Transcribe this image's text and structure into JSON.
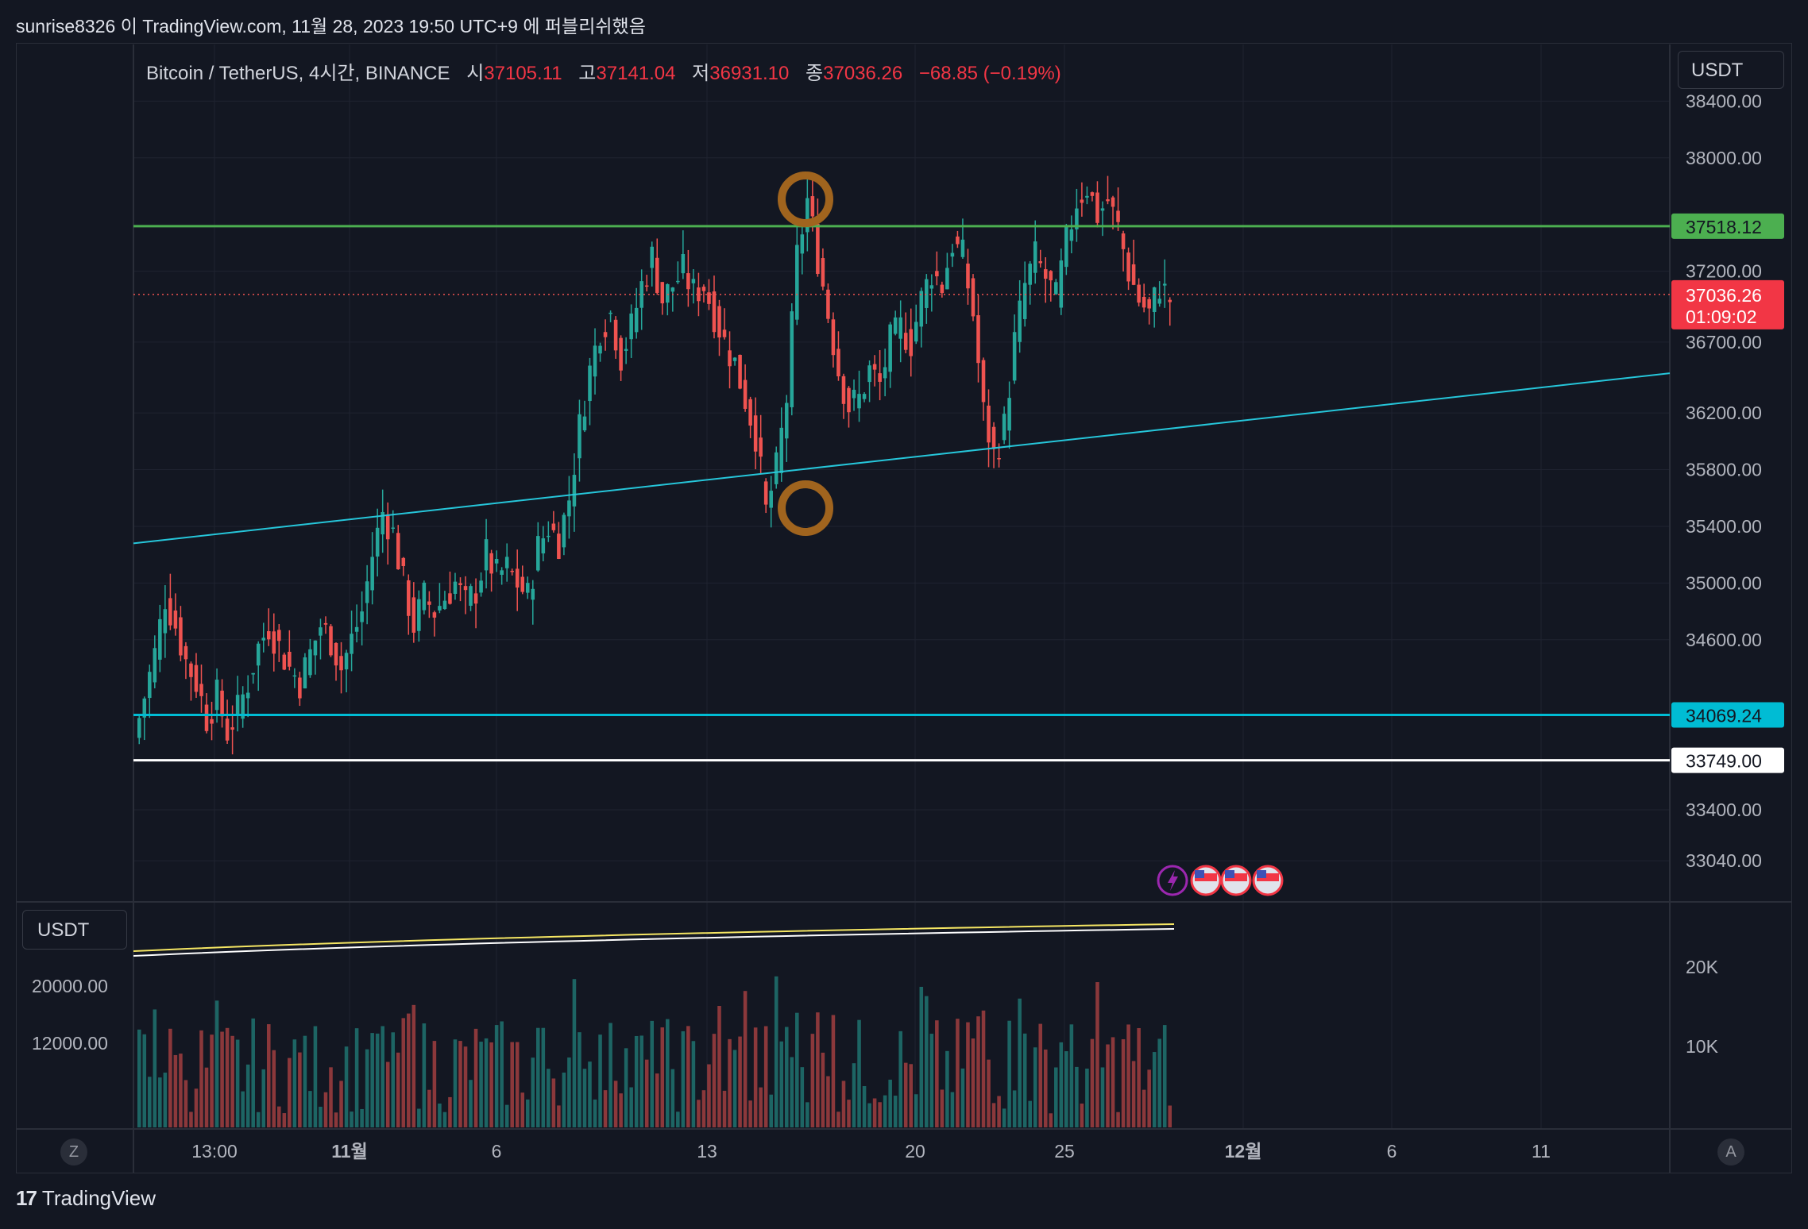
{
  "header": {
    "text": "sunrise8326 이 TradingView.com, 11월 28, 2023 19:50 UTC+9 에 퍼블리쉬했음"
  },
  "legend": {
    "symbol": "Bitcoin / TetherUS, 4시간, BINANCE",
    "o_label": "시",
    "o": "37105.11",
    "h_label": "고",
    "h": "37141.04",
    "l_label": "저",
    "l": "36931.10",
    "c_label": "종",
    "c": "37036.26",
    "change": "−68.85 (−0.19%)"
  },
  "currency_button": "USDT",
  "volume_currency_button": "USDT",
  "footer": {
    "brand": "TradingView",
    "logo": "17"
  },
  "corners": {
    "left": "Z",
    "right": "A"
  },
  "colors": {
    "up": "#26a69a",
    "down": "#ef5350",
    "bg": "#131722",
    "grid": "#1f2330",
    "green_line": "#4caf50",
    "cyan_line": "#00bcd4",
    "white_line": "#ffffff",
    "trend": "#26c6da",
    "circle": "#a0641e"
  },
  "chart_data": {
    "type": "candlestick",
    "y_ticks": [
      "38400.00",
      "38000.00",
      "37200.00",
      "36700.00",
      "36200.00",
      "35800.00",
      "35400.00",
      "35000.00",
      "34600.00",
      "33400.00",
      "33040.00"
    ],
    "x_ticks": [
      "13:00",
      "11월",
      "6",
      "13",
      "20",
      "25",
      "12월",
      "6",
      "11"
    ],
    "horizontal_lines": [
      {
        "price": 37518.12,
        "label": "37518.12",
        "color": "#4caf50"
      },
      {
        "price": 34069.24,
        "label": "34069.24",
        "color": "#00bcd4"
      },
      {
        "price": 33749.0,
        "label": "33749.00",
        "color": "#ffffff"
      }
    ],
    "last_price": {
      "price": 37036.26,
      "label": "37036.26",
      "countdown": "01:09:02"
    },
    "trendline": {
      "from": [
        "2023-10-29",
        35280
      ],
      "to": [
        "2023-12-13",
        36480
      ]
    },
    "volume_axis_left": [
      "20000.00",
      "12000.00"
    ],
    "volume_axis_right": [
      "20K",
      "10K"
    ],
    "markers": [
      "lightning-event-icon",
      "us-flag-icon",
      "us-flag-icon",
      "us-flag-icon"
    ],
    "close_path": [
      33900,
      34200,
      34500,
      34900,
      34700,
      34450,
      34300,
      34050,
      34200,
      33950,
      34100,
      34300,
      34550,
      34700,
      34550,
      34400,
      34300,
      34500,
      34700,
      34600,
      34400,
      34600,
      34800,
      35200,
      35500,
      35350,
      35000,
      34700,
      34900,
      34800,
      34900,
      35000,
      34850,
      34950,
      35200,
      35050,
      35100,
      35000,
      34900,
      35250,
      35400,
      35300,
      35600,
      36100,
      36500,
      36800,
      36900,
      36600,
      36800,
      37100,
      37300,
      37000,
      37100,
      37200,
      37050,
      37100,
      36900,
      36700,
      36550,
      36300,
      36050,
      35500,
      35800,
      36300,
      37300,
      37700,
      37300,
      36900,
      36500,
      36250,
      36300,
      36500,
      36400,
      36700,
      36800,
      36700,
      37000,
      37200,
      37100,
      37400,
      37300,
      36900,
      36200,
      35900,
      36100,
      36700,
      37100,
      37300,
      37150,
      37000,
      37400,
      37700,
      37800,
      37600,
      37700,
      37500,
      37200,
      37000,
      36900,
      37100,
      37000
    ]
  }
}
